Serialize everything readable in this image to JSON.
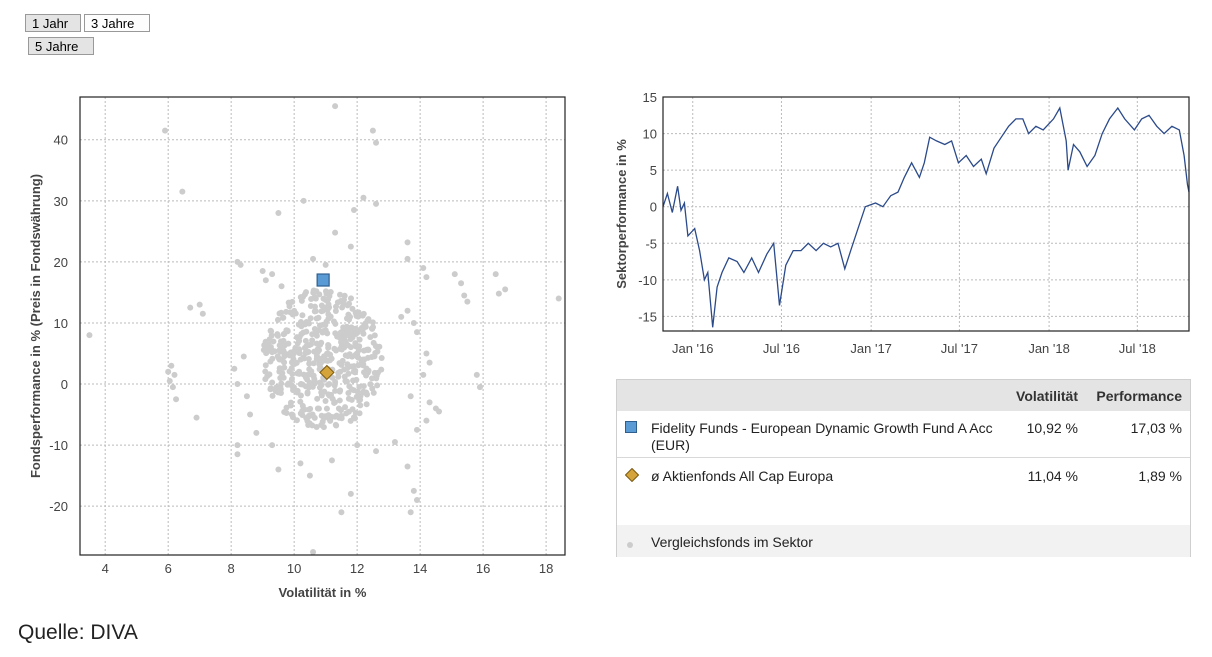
{
  "period_buttons": [
    {
      "label": "1 Jahr",
      "active": false
    },
    {
      "label": "3 Jahre",
      "active": true
    },
    {
      "label": "5 Jahre",
      "active": false
    }
  ],
  "colors": {
    "fund": "#5b9bd5",
    "fund_border": "#2f5f8f",
    "average": "#d4a33a",
    "average_border": "#7a5a10",
    "peers": "#cccccc",
    "line": "#2b4a8a",
    "grid": "#bbbbbb"
  },
  "chart_data": [
    {
      "type": "scatter",
      "xlabel": "Volatilität in %",
      "ylabel": "Fondsperformance in % (Preis in Fondswährung)",
      "xlim": [
        3.2,
        18.6
      ],
      "ylim": [
        -28,
        47
      ],
      "xticks": [
        4,
        6,
        8,
        10,
        12,
        14,
        16,
        18
      ],
      "yticks": [
        -20,
        -10,
        0,
        10,
        20,
        30,
        40
      ],
      "grid": true,
      "series": [
        {
          "name": "Fidelity Funds - European Dynamic Growth Fund A Acc (EUR)",
          "marker": "square",
          "points": [
            [
              10.92,
              17.03
            ]
          ]
        },
        {
          "name": "ø Aktienfonds All Cap Europa",
          "marker": "diamond",
          "points": [
            [
              11.04,
              1.89
            ]
          ]
        },
        {
          "name": "Vergleichsfonds im Sektor",
          "marker": "dot",
          "points": [
            [
              3.5,
              8
            ],
            [
              5.9,
              41.5
            ],
            [
              6.45,
              31.5
            ],
            [
              11.3,
              45.5
            ],
            [
              12.5,
              41.5
            ],
            [
              12.6,
              39.5
            ],
            [
              10.3,
              30
            ],
            [
              12.2,
              30.5
            ],
            [
              12.6,
              29.5
            ],
            [
              9.5,
              28
            ],
            [
              11.9,
              28.5
            ],
            [
              11.3,
              24.8
            ],
            [
              11.8,
              22.5
            ],
            [
              13.6,
              23.2
            ],
            [
              13.6,
              20.5
            ],
            [
              10.6,
              20.5
            ],
            [
              11.0,
              19.5
            ],
            [
              15.1,
              18
            ],
            [
              15.3,
              16.5
            ],
            [
              15.4,
              14.5
            ],
            [
              15.5,
              13.5
            ],
            [
              16.4,
              18
            ],
            [
              16.5,
              14.8
            ],
            [
              16.7,
              15.5
            ],
            [
              18.4,
              14
            ],
            [
              14.1,
              19
            ],
            [
              14.2,
              17.5
            ],
            [
              6.7,
              12.5
            ],
            [
              7.0,
              13
            ],
            [
              7.1,
              11.5
            ],
            [
              6.0,
              2
            ],
            [
              6.1,
              3
            ],
            [
              6.2,
              1.5
            ],
            [
              6.05,
              0.5
            ],
            [
              6.15,
              -0.5
            ],
            [
              6.25,
              -2.5
            ],
            [
              6.9,
              -5.5
            ],
            [
              15.8,
              1.5
            ],
            [
              15.9,
              -0.5
            ],
            [
              13.6,
              -13.5
            ],
            [
              13.8,
              -17.5
            ],
            [
              13.9,
              -19
            ],
            [
              13.7,
              -21
            ],
            [
              10.6,
              -27.5
            ],
            [
              11.5,
              -21
            ],
            [
              11.8,
              -18
            ],
            [
              8.2,
              -10
            ],
            [
              8.2,
              -11.5
            ],
            [
              9.5,
              -14
            ],
            [
              14.3,
              -3
            ],
            [
              14.5,
              -4
            ],
            [
              14.6,
              -4.5
            ],
            [
              14.2,
              -6
            ],
            [
              13.9,
              -7.5
            ],
            [
              8.2,
              20
            ],
            [
              8.3,
              19.5
            ],
            [
              9.0,
              18.5
            ],
            [
              9.3,
              18
            ],
            [
              9.1,
              17
            ],
            [
              9.6,
              16
            ],
            [
              13.4,
              11
            ],
            [
              13.6,
              12
            ],
            [
              13.8,
              10
            ],
            [
              13.9,
              8.5
            ],
            [
              14.2,
              5
            ],
            [
              14.3,
              3.5
            ],
            [
              14.1,
              1.5
            ],
            [
              13.7,
              -2
            ],
            [
              8.4,
              4.5
            ],
            [
              8.1,
              2.5
            ],
            [
              8.2,
              0
            ],
            [
              8.5,
              -2
            ],
            [
              8.6,
              -5
            ],
            [
              8.8,
              -8
            ],
            [
              9.3,
              -10
            ],
            [
              10.2,
              -13
            ],
            [
              10.5,
              -15
            ],
            [
              11.2,
              -12.5
            ],
            [
              12.0,
              -10
            ],
            [
              12.6,
              -11
            ],
            [
              13.2,
              -9.5
            ]
          ]
        }
      ]
    },
    {
      "type": "line",
      "ylabel": "Sektorperformance in %",
      "ylim": [
        -17,
        15
      ],
      "yticks": [
        -15,
        -10,
        -5,
        0,
        5,
        10,
        15
      ],
      "x_tick_labels": [
        "Jan '16",
        "Jul '16",
        "Jan '17",
        "Jul '17",
        "Jan '18",
        "Jul '18"
      ],
      "x_tick_dates": [
        "2016-01-01",
        "2016-07-01",
        "2017-01-01",
        "2017-07-01",
        "2018-01-01",
        "2018-07-01"
      ],
      "xlim": [
        "2015-11-01",
        "2018-10-15"
      ],
      "grid": true,
      "points": [
        [
          "2015-11-01",
          0
        ],
        [
          "2015-11-10",
          1.8
        ],
        [
          "2015-11-20",
          -0.8
        ],
        [
          "2015-12-01",
          2.8
        ],
        [
          "2015-12-08",
          -0.5
        ],
        [
          "2015-12-15",
          0.5
        ],
        [
          "2015-12-22",
          -4
        ],
        [
          "2016-01-05",
          -3
        ],
        [
          "2016-01-15",
          -6
        ],
        [
          "2016-01-25",
          -10
        ],
        [
          "2016-02-01",
          -9
        ],
        [
          "2016-02-11",
          -16.5
        ],
        [
          "2016-02-20",
          -11
        ],
        [
          "2016-03-01",
          -9
        ],
        [
          "2016-03-15",
          -7
        ],
        [
          "2016-04-01",
          -7.5
        ],
        [
          "2016-04-15",
          -9
        ],
        [
          "2016-05-01",
          -7
        ],
        [
          "2016-05-15",
          -9
        ],
        [
          "2016-06-01",
          -6.5
        ],
        [
          "2016-06-15",
          -5
        ],
        [
          "2016-06-27",
          -13.5
        ],
        [
          "2016-07-10",
          -8
        ],
        [
          "2016-07-25",
          -6
        ],
        [
          "2016-08-10",
          -6
        ],
        [
          "2016-08-25",
          -5
        ],
        [
          "2016-09-10",
          -6
        ],
        [
          "2016-09-25",
          -5
        ],
        [
          "2016-10-10",
          -5.5
        ],
        [
          "2016-10-25",
          -5
        ],
        [
          "2016-11-08",
          -8.5
        ],
        [
          "2016-11-20",
          -6
        ],
        [
          "2016-12-05",
          -3
        ],
        [
          "2016-12-20",
          0
        ],
        [
          "2017-01-10",
          0.5
        ],
        [
          "2017-01-25",
          0
        ],
        [
          "2017-02-10",
          1.5
        ],
        [
          "2017-02-25",
          2
        ],
        [
          "2017-03-10",
          4
        ],
        [
          "2017-03-25",
          6
        ],
        [
          "2017-04-10",
          4
        ],
        [
          "2017-04-20",
          6
        ],
        [
          "2017-05-01",
          9.5
        ],
        [
          "2017-05-15",
          9
        ],
        [
          "2017-06-01",
          8.5
        ],
        [
          "2017-06-15",
          9
        ],
        [
          "2017-06-29",
          6
        ],
        [
          "2017-07-15",
          7
        ],
        [
          "2017-07-30",
          5.5
        ],
        [
          "2017-08-15",
          6.5
        ],
        [
          "2017-08-25",
          4.5
        ],
        [
          "2017-09-10",
          8
        ],
        [
          "2017-09-25",
          9.5
        ],
        [
          "2017-10-10",
          11
        ],
        [
          "2017-10-25",
          12
        ],
        [
          "2017-11-08",
          12
        ],
        [
          "2017-11-20",
          10
        ],
        [
          "2017-12-05",
          11
        ],
        [
          "2017-12-20",
          10.5
        ],
        [
          "2018-01-10",
          12
        ],
        [
          "2018-01-23",
          13.5
        ],
        [
          "2018-02-05",
          9
        ],
        [
          "2018-02-09",
          5
        ],
        [
          "2018-02-20",
          8.5
        ],
        [
          "2018-03-05",
          7.5
        ],
        [
          "2018-03-20",
          5.5
        ],
        [
          "2018-04-05",
          7
        ],
        [
          "2018-04-20",
          10
        ],
        [
          "2018-05-05",
          12
        ],
        [
          "2018-05-22",
          13.5
        ],
        [
          "2018-06-05",
          12
        ],
        [
          "2018-06-25",
          10.5
        ],
        [
          "2018-07-10",
          12
        ],
        [
          "2018-07-25",
          12.5
        ],
        [
          "2018-08-10",
          11
        ],
        [
          "2018-08-25",
          10
        ],
        [
          "2018-09-10",
          11
        ],
        [
          "2018-09-25",
          10.5
        ],
        [
          "2018-10-05",
          7
        ],
        [
          "2018-10-12",
          3
        ],
        [
          "2018-10-15",
          2
        ]
      ]
    }
  ],
  "legend_table": {
    "header_volatility": "Volatilität",
    "header_performance": "Performance",
    "rows": [
      {
        "name": "Fidelity Funds - European Dynamic Growth Fund A Acc (EUR)",
        "volatility": "10,92 %",
        "performance": "17,03 %",
        "marker": "square"
      },
      {
        "name": "ø Aktienfonds All Cap Europa",
        "volatility": "11,04 %",
        "performance": "1,89 %",
        "marker": "diamond"
      },
      {
        "name": "Vergleichsfonds im Sektor",
        "volatility": "",
        "performance": "",
        "marker": "dot"
      }
    ]
  },
  "source": "Quelle: DIVA"
}
